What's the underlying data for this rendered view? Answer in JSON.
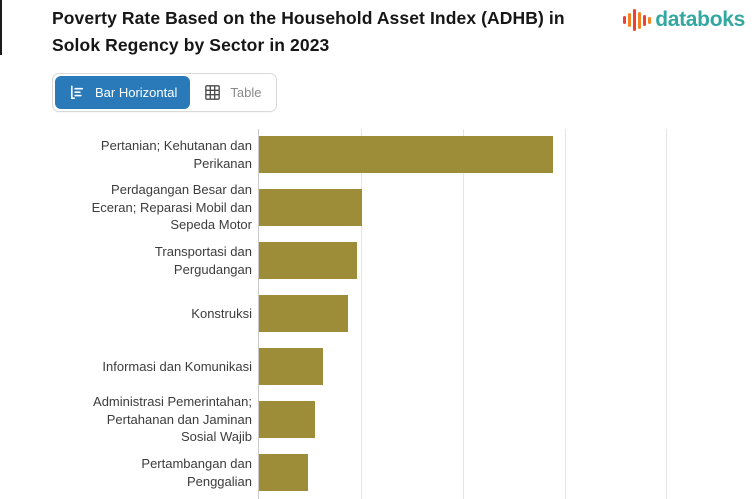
{
  "header": {
    "title_line1": "Poverty Rate Based on the Household Asset Index (ADHB) in",
    "title_line2": "Solok Regency by Sector in 2023",
    "logo_text": "databoks"
  },
  "toolbar": {
    "bar_horizontal_label": "Bar Horizontal",
    "table_label": "Table",
    "active_view": "Bar Horizontal"
  },
  "colors": {
    "bar": "#9e8d38",
    "accent_blue": "#2a7ab9",
    "logo_teal": "#33a7a2",
    "logo_red": "#ee4036",
    "logo_orange": "#f58220",
    "gridline": "#e4e4e4",
    "axis_line": "#c9c9c9",
    "title_text": "#161616",
    "label_text": "#3c3c3c",
    "inactive_text": "#8a8a8a"
  },
  "logo": {
    "icon_bars": [
      {
        "h": 8,
        "color": "#ee4036"
      },
      {
        "h": 14,
        "color": "#f58220"
      },
      {
        "h": 22,
        "color": "#ee4036"
      },
      {
        "h": 17,
        "color": "#f58220"
      },
      {
        "h": 11,
        "color": "#ee4036"
      },
      {
        "h": 7,
        "color": "#f58220"
      }
    ]
  },
  "chart_data": {
    "type": "bar",
    "orientation": "horizontal",
    "title": "Poverty Rate Based on the Household Asset Index (ADHB) in Solok Regency by Sector in 2023",
    "categories": [
      "Pertanian; Kehutanan dan Perikanan",
      "Perdagangan Besar dan Eceran; Reparasi Mobil dan Sepeda Motor",
      "Transportasi dan Pergudangan",
      "Konstruksi",
      "Informasi dan Komunikasi",
      "Administrasi Pemerintahan; Pertahanan dan Jaminan Sosial Wajib",
      "Pertambangan dan Penggalian"
    ],
    "values": [
      28.8,
      10.1,
      9.6,
      8.7,
      6.3,
      5.5,
      4.8
    ],
    "note": "x-axis tick labels are cropped out of the visible screenshot; values estimated from gridlines assumed at 10-unit spacing",
    "xlabel": "",
    "ylabel": "",
    "xlim": [
      0,
      48.5
    ],
    "gridline_values": [
      10,
      20,
      30,
      40
    ],
    "grid": true,
    "legend": false
  },
  "presentation": {
    "category_lines": [
      [
        "Pertanian; Kehutanan dan",
        "Perikanan"
      ],
      [
        "Perdagangan Besar dan",
        "Eceran; Reparasi Mobil dan",
        "Sepeda Motor"
      ],
      [
        "Transportasi dan",
        "Pergudangan"
      ],
      [
        "Konstruksi"
      ],
      [
        "Informasi dan Komunikasi"
      ],
      [
        "Administrasi Pemerintahan;",
        "Pertahanan dan Jaminan",
        "Sosial Wajib"
      ],
      [
        "Pertambangan dan",
        "Penggalian"
      ]
    ]
  }
}
